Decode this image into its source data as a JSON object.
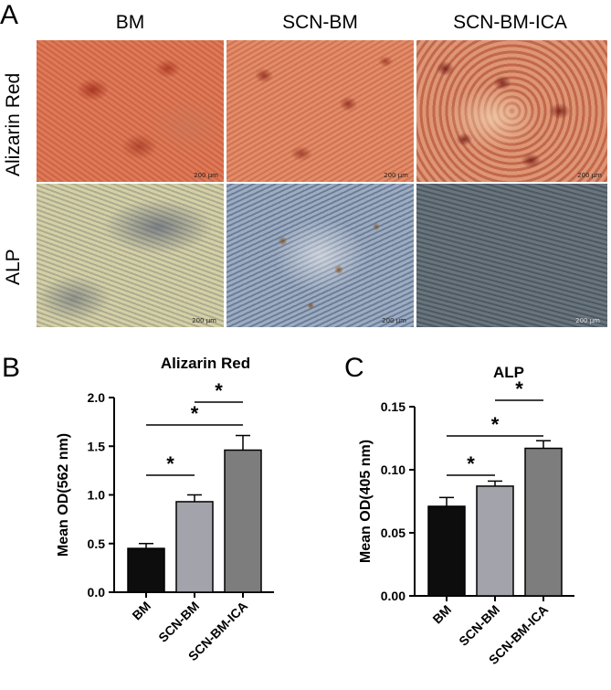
{
  "panel_a": {
    "letter": "A",
    "columns": [
      "BM",
      "SCN-BM",
      "SCN-BM-ICA"
    ],
    "rows": [
      "Alizarin Red",
      "ALP"
    ],
    "scale_bar": "200 μm"
  },
  "panel_b": {
    "letter": "B"
  },
  "panel_c": {
    "letter": "C"
  },
  "chart_data": [
    {
      "type": "bar",
      "title": "Alizarin Red",
      "categories": [
        "BM",
        "SCN-BM",
        "SCN-BM-ICA"
      ],
      "values": [
        0.45,
        0.93,
        1.46
      ],
      "errors": [
        0.05,
        0.07,
        0.15
      ],
      "colors": [
        "#0d0d0d",
        "#a3a3ab",
        "#7d7d7d"
      ],
      "ylabel": "Mean OD(562 nm)",
      "ylim": [
        0,
        2.0
      ],
      "yticks": [
        "0.0",
        "0.5",
        "1.0",
        "1.5",
        "2.0"
      ],
      "significance": [
        {
          "from": 0,
          "to": 1,
          "label": "*"
        },
        {
          "from": 0,
          "to": 2,
          "label": "*"
        },
        {
          "from": 1,
          "to": 2,
          "label": "*"
        }
      ]
    },
    {
      "type": "bar",
      "title": "ALP",
      "categories": [
        "BM",
        "SCN-BM",
        "SCN-BM-ICA"
      ],
      "values": [
        0.071,
        0.087,
        0.117
      ],
      "errors": [
        0.007,
        0.004,
        0.006
      ],
      "colors": [
        "#0d0d0d",
        "#a3a3ab",
        "#7d7d7d"
      ],
      "ylabel": "Mean OD(405 nm)",
      "ylim": [
        0,
        0.15
      ],
      "yticks": [
        "0.00",
        "0.05",
        "0.10",
        "0.15"
      ],
      "significance": [
        {
          "from": 0,
          "to": 1,
          "label": "*"
        },
        {
          "from": 0,
          "to": 2,
          "label": "*"
        },
        {
          "from": 1,
          "to": 2,
          "label": "*"
        }
      ]
    }
  ]
}
